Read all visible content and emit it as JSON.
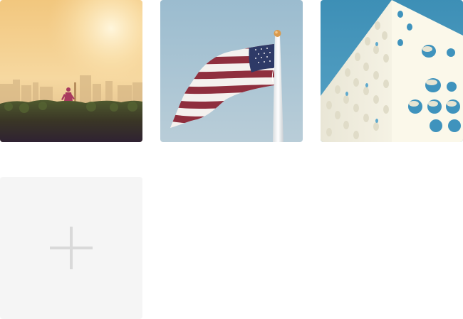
{
  "gallery": {
    "photos": [
      {
        "subject": "runner-in-field-at-sunrise"
      },
      {
        "subject": "american-flag-on-pole"
      },
      {
        "subject": "white-building-with-circular-holes"
      }
    ],
    "upload_icon": "plus-icon"
  },
  "colors": {
    "upload_tile_bg": "#f5f5f5",
    "plus_icon": "#d9d9d9"
  }
}
